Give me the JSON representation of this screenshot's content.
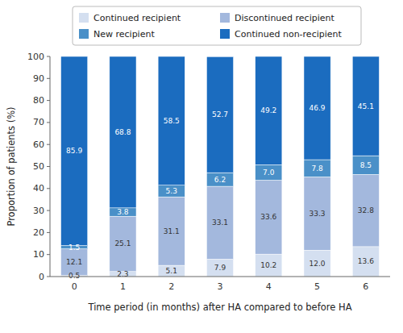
{
  "chart_data": {
    "type": "bar",
    "stacked": true,
    "categories": [
      "0",
      "1",
      "2",
      "3",
      "4",
      "5",
      "6"
    ],
    "series": [
      {
        "name": "Continued recipient",
        "color": "#d4dff0",
        "values": [
          0.5,
          2.3,
          5.1,
          7.9,
          10.2,
          12.0,
          13.6
        ],
        "value_labels": [
          "0.5",
          "2.3",
          "5.1",
          "7.9",
          "10.2",
          "12.0",
          "13.6"
        ]
      },
      {
        "name": "Discontinued recipient",
        "color": "#a3b8dd",
        "values": [
          12.1,
          25.1,
          31.1,
          33.1,
          33.6,
          33.3,
          32.8
        ]
      },
      {
        "name": "New recipient",
        "color": "#4a90c8",
        "values": [
          1.5,
          3.8,
          5.3,
          6.2,
          7.0,
          7.8,
          8.5
        ],
        "value_labels": [
          "1.5",
          "3.8",
          "5.3",
          "6.2",
          "7.0",
          "7.8",
          "8.5"
        ]
      },
      {
        "name": "Continued non-recipient",
        "color": "#1b6cbf",
        "values": [
          85.9,
          68.8,
          58.5,
          52.7,
          49.2,
          46.9,
          45.1
        ]
      }
    ],
    "xlabel": "Time period (in months) after HA compared to before HA",
    "ylabel": "Proportion of patients (%)",
    "ylim": [
      0,
      100
    ],
    "yticks": [
      0,
      10,
      20,
      30,
      40,
      50,
      60,
      70,
      80,
      90,
      100
    ],
    "data_labels": true,
    "grid": false,
    "legend": "top"
  }
}
